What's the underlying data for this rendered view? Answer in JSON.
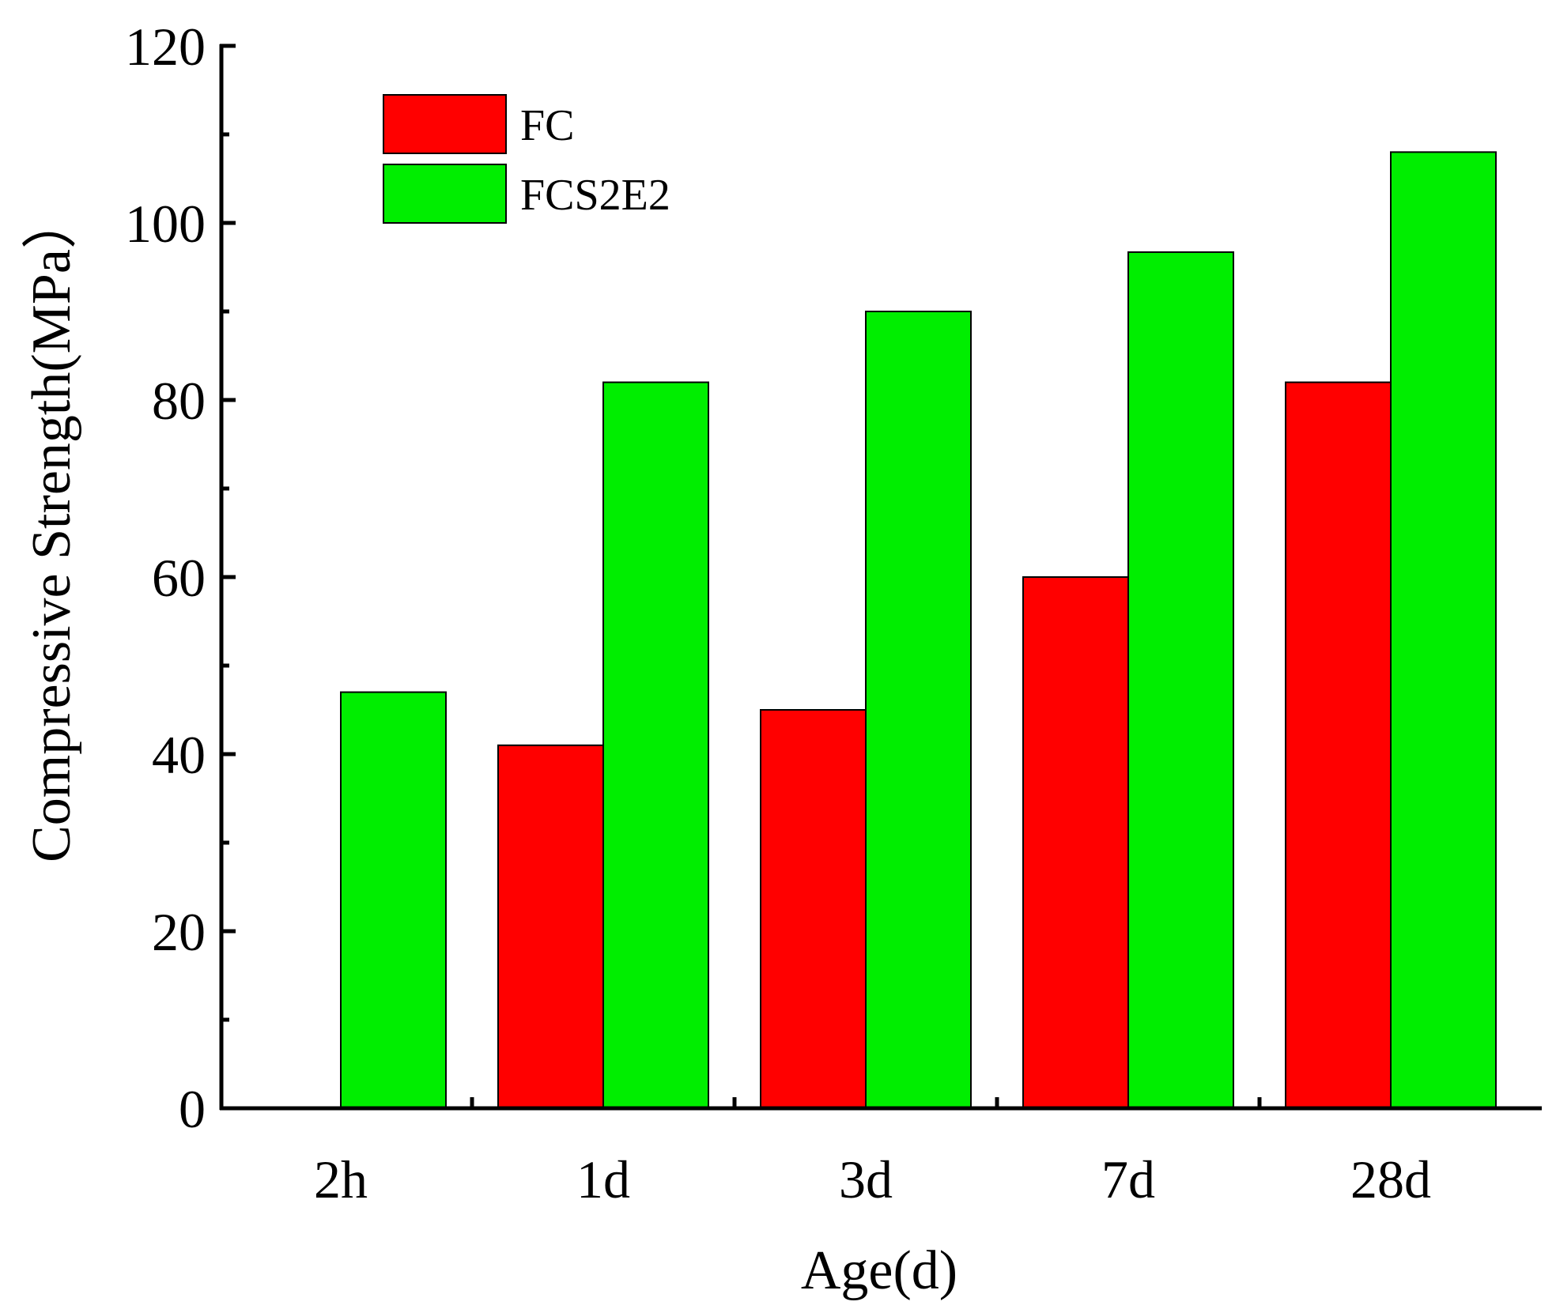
{
  "chart_data": {
    "type": "bar",
    "title": "",
    "xlabel": "Age(d)",
    "ylabel": "Compressive Strength(MPa）",
    "categories": [
      "2h",
      "1d",
      "3d",
      "7d",
      "28d"
    ],
    "series": [
      {
        "name": "FC",
        "color": "#ff0000",
        "values": [
          0,
          41,
          45,
          60,
          82
        ]
      },
      {
        "name": "FCS2E2",
        "color": "#00ee00",
        "values": [
          47,
          82,
          90,
          96.7,
          108
        ]
      }
    ],
    "ylim": [
      0,
      120
    ],
    "yticks": [
      0,
      20,
      40,
      60,
      80,
      100,
      120
    ],
    "ytick_labels": [
      "0",
      "20",
      "40",
      "60",
      "80",
      "100",
      "120"
    ],
    "legend_position": "top-left",
    "grid": false
  }
}
